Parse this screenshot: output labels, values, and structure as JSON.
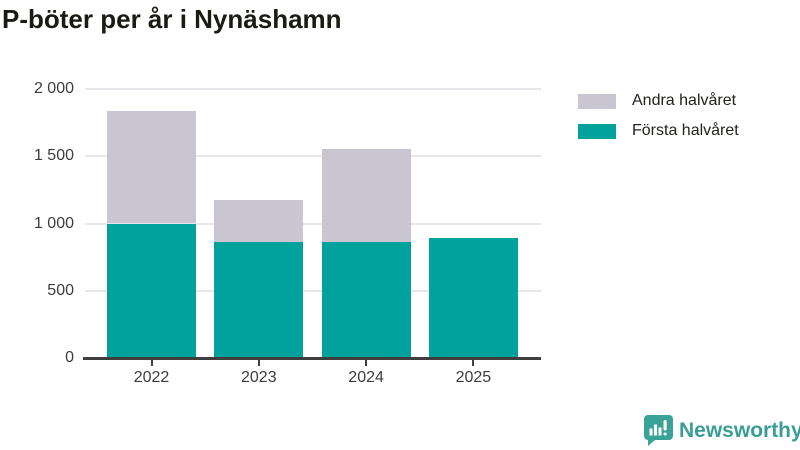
{
  "title": "P-böter per år i Nynäshamn",
  "colors": {
    "first_half": "#00a29b",
    "second_half": "#c9c6d1",
    "grid": "#e7e6ea",
    "axis": "#3e3e3e",
    "tick_text": "#3d3d3d",
    "title_text": "#1b1b16",
    "brand_teal": "#3a9e96"
  },
  "legend": {
    "items": [
      {
        "label": "Andra halvåret",
        "color": "#c9c6d1"
      },
      {
        "label": "Första halvåret",
        "color": "#00a29b"
      }
    ]
  },
  "chart_data": {
    "type": "bar",
    "stacked": true,
    "title": "P-böter per år i Nynäshamn",
    "categories": [
      "2022",
      "2023",
      "2024",
      "2025"
    ],
    "series": [
      {
        "name": "Första halvåret",
        "color": "#00a29b",
        "values": [
          1000,
          860,
          865,
          895
        ]
      },
      {
        "name": "Andra halvåret",
        "color": "#c9c6d1",
        "values": [
          835,
          315,
          690,
          0
        ]
      }
    ],
    "xlabel": "",
    "ylabel": "",
    "ylim": [
      0,
      2000
    ],
    "yticks": [
      0,
      500,
      1000,
      1500,
      2000
    ],
    "ytick_labels": [
      "0",
      "500",
      "1 000",
      "1 500",
      "2 000"
    ],
    "grid": true,
    "legend_position": "top-right"
  },
  "branding": {
    "logo_text": "Newsworthy",
    "logo_icon": "bar-chart-speech-bubble-icon"
  }
}
